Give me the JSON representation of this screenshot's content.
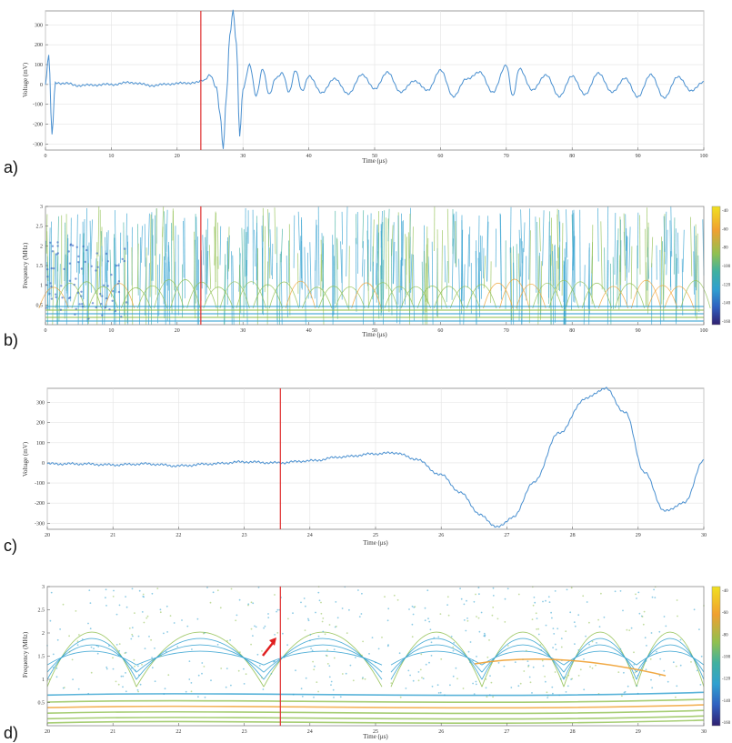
{
  "colors": {
    "signal": "#4a90d0",
    "marker": "#e03030",
    "arrow": "#e02020",
    "grid": "#e3e3e3",
    "frame": "#888888"
  },
  "chart_data": [
    {
      "panel_label": "a)",
      "type": "line",
      "xlabel": "Time (μs)",
      "ylabel": "Voltage (mV)",
      "xlim": [
        0,
        100
      ],
      "ylim": [
        -330,
        370
      ],
      "xticks": [
        0,
        10,
        20,
        30,
        40,
        50,
        60,
        70,
        80,
        90,
        100
      ],
      "yticks": [
        -300,
        -200,
        -100,
        0,
        100,
        200,
        300
      ],
      "grid": true,
      "marker_line_x": 23.6,
      "series": [
        {
          "x": [
            0,
            0.5,
            1,
            1.5,
            3,
            5,
            10,
            13,
            16,
            20,
            23,
            24,
            25,
            26,
            26.5,
            27,
            27.5,
            28,
            28.5,
            29,
            29.5,
            30,
            31,
            32,
            33,
            34,
            35,
            36,
            37,
            38,
            39,
            40,
            42,
            44,
            46,
            48,
            50,
            52,
            54,
            56,
            58,
            60,
            62,
            64,
            66,
            68,
            70,
            71,
            72,
            74,
            76,
            78,
            80,
            82,
            84,
            86,
            88,
            90,
            92,
            94,
            96,
            98,
            100
          ],
          "y": [
            0,
            150,
            -250,
            10,
            5,
            -5,
            0,
            10,
            -5,
            5,
            10,
            20,
            50,
            -20,
            -150,
            -320,
            -50,
            250,
            370,
            200,
            -260,
            -20,
            100,
            -60,
            80,
            -50,
            30,
            60,
            -40,
            70,
            -30,
            40,
            -40,
            30,
            -50,
            50,
            -20,
            60,
            -40,
            20,
            -30,
            70,
            -60,
            30,
            60,
            -40,
            100,
            -60,
            80,
            -30,
            50,
            -60,
            40,
            -50,
            60,
            -40,
            30,
            -60,
            50,
            -70,
            40,
            -30,
            10
          ]
        }
      ]
    },
    {
      "panel_label": "b)",
      "type": "heatmap",
      "xlabel": "Time (μs)",
      "ylabel": "Frequency (MHz)",
      "xlim": [
        0,
        100
      ],
      "ylim": [
        0,
        3
      ],
      "xticks": [
        0,
        10,
        20,
        30,
        40,
        50,
        60,
        70,
        80,
        90,
        100
      ],
      "yticks": [
        0.5,
        1,
        1.5,
        2,
        2.5,
        3
      ],
      "marker_line_x": 23.6,
      "colorbar_ticks": [
        -40,
        -60,
        -80,
        -100,
        -120,
        -140,
        -160
      ],
      "colormap": [
        "#f0e020",
        "#f0a030",
        "#90c050",
        "#40b0a0",
        "#30a0d0",
        "#3060c0",
        "#302070"
      ]
    },
    {
      "panel_label": "c)",
      "type": "line",
      "xlabel": "Time (μs)",
      "ylabel": "Voltage (mV)",
      "xlim": [
        20,
        30
      ],
      "ylim": [
        -330,
        370
      ],
      "xticks": [
        20,
        21,
        22,
        23,
        24,
        25,
        26,
        27,
        28,
        29,
        30
      ],
      "yticks": [
        -300,
        -200,
        -100,
        0,
        100,
        200,
        300
      ],
      "grid": true,
      "marker_line_x": 23.55,
      "series": [
        {
          "x": [
            20,
            20.5,
            21,
            21.5,
            22,
            22.5,
            23,
            23.5,
            24,
            24.5,
            25,
            25.3,
            25.6,
            26,
            26.3,
            26.6,
            26.85,
            27.1,
            27.4,
            27.8,
            28.2,
            28.5,
            28.8,
            29.1,
            29.4,
            29.7,
            30
          ],
          "y": [
            -5,
            -5,
            -10,
            -5,
            -15,
            -5,
            5,
            0,
            10,
            30,
            45,
            50,
            20,
            -60,
            -150,
            -260,
            -320,
            -270,
            -100,
            150,
            320,
            370,
            250,
            -50,
            -240,
            -200,
            10
          ]
        }
      ]
    },
    {
      "panel_label": "d)",
      "type": "heatmap",
      "xlabel": "Time (μs)",
      "ylabel": "Frequency (MHz)",
      "xlim": [
        20,
        30
      ],
      "ylim": [
        0,
        3
      ],
      "xticks": [
        20,
        21,
        22,
        23,
        24,
        25,
        26,
        27,
        28,
        29,
        30
      ],
      "yticks": [
        0.5,
        1,
        1.5,
        2,
        2.5,
        3
      ],
      "marker_line_x": 23.55,
      "annotation": "arrow",
      "colorbar_ticks": [
        -40,
        -60,
        -80,
        -100,
        -120,
        -140,
        -160
      ],
      "colormap": [
        "#f0e020",
        "#f0a030",
        "#90c050",
        "#40b0a0",
        "#30a0d0",
        "#3060c0",
        "#302070"
      ]
    }
  ]
}
